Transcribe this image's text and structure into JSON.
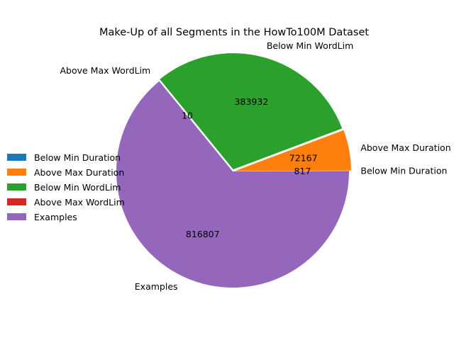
{
  "chart_data": {
    "type": "pie",
    "title": "Make-Up of all Segments in the HowTo100M Dataset",
    "categories": [
      "Below Min Duration",
      "Above Max Duration",
      "Below Min WordLim",
      "Above Max WordLim",
      "Examples"
    ],
    "values": [
      817,
      72167,
      383932,
      10,
      816807
    ],
    "colors": [
      "#1f77b4",
      "#ff7f0e",
      "#2ca02c",
      "#d62728",
      "#9467bd"
    ],
    "explode": [
      0,
      0.02,
      0.02,
      0.02,
      0
    ],
    "legend": {
      "position": "center-left",
      "entries": [
        "Below Min Duration",
        "Above Max Duration",
        "Below Min WordLim",
        "Above Max WordLim",
        "Examples"
      ]
    }
  }
}
